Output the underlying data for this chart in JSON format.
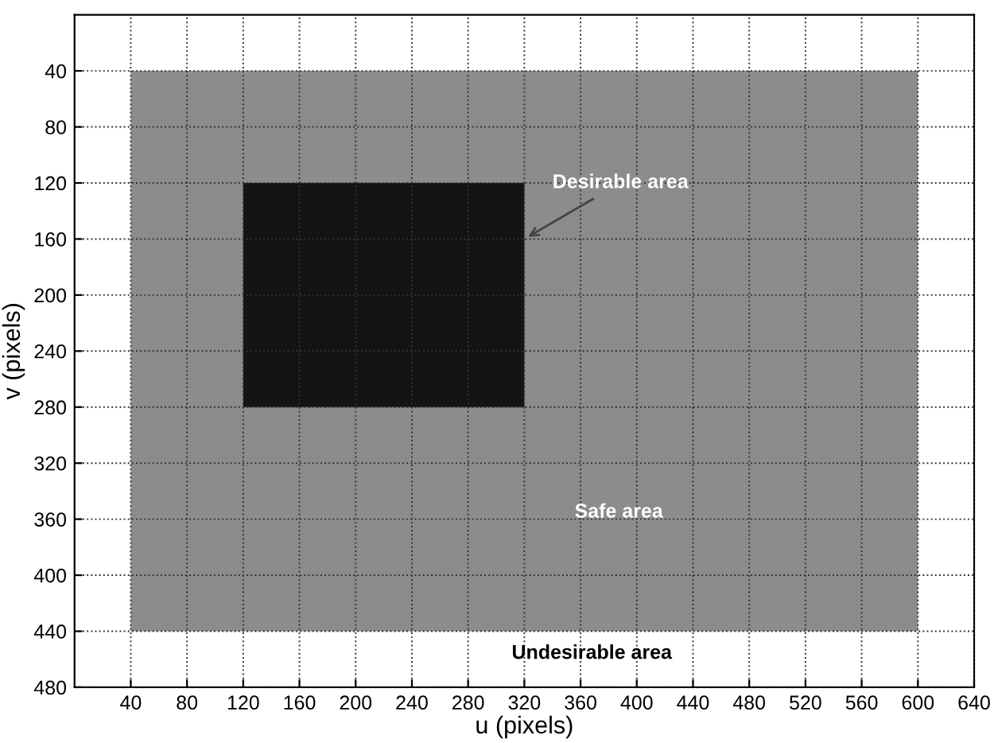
{
  "chart_data": {
    "type": "area",
    "xlabel": "u (pixels)",
    "ylabel": "v (pixels)",
    "xlim": [
      0,
      640
    ],
    "ylim": [
      480,
      0
    ],
    "xticks": [
      40,
      80,
      120,
      160,
      200,
      240,
      280,
      320,
      360,
      400,
      440,
      480,
      520,
      560,
      600,
      640
    ],
    "yticks": [
      40,
      80,
      120,
      160,
      200,
      240,
      280,
      320,
      360,
      400,
      440,
      480
    ],
    "grid": true,
    "line_style": "dotted",
    "series": [
      {
        "x": [
          40,
          600,
          600,
          40
        ],
        "values": [
          40,
          40,
          440,
          440
        ],
        "color": "#8c8c8c"
      },
      {
        "x": [
          120,
          320,
          320,
          120
        ],
        "values": [
          120,
          120,
          280,
          280
        ],
        "color": "#141414"
      }
    ],
    "annotations": [
      {
        "text": "Desirable area",
        "x": 320,
        "y": 160
      },
      "Safe area",
      "Undesirable area"
    ]
  }
}
